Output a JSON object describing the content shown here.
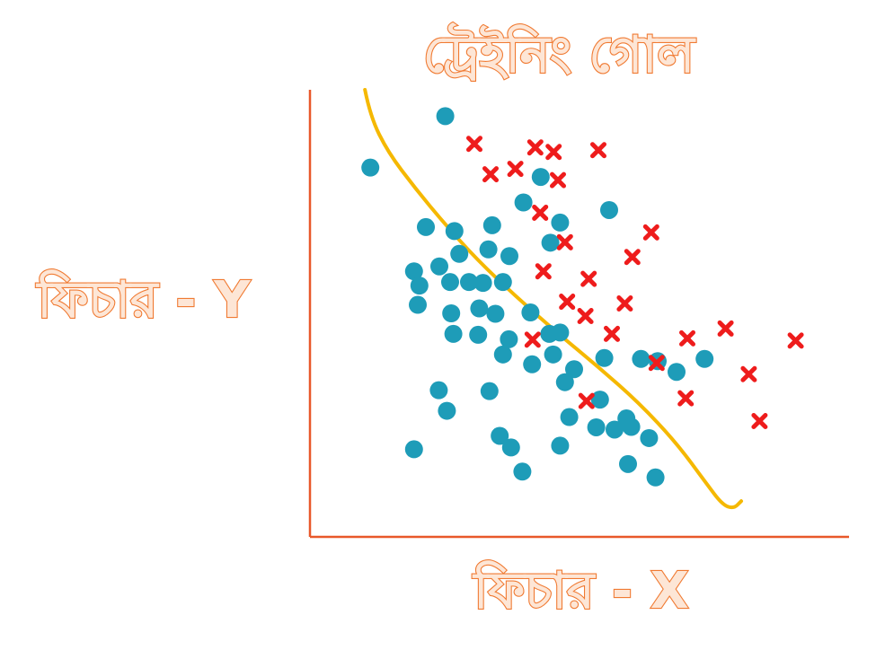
{
  "chart_data": {
    "type": "scatter",
    "title": "ট্রেইনিং গোল",
    "xlabel": "ফিচার - X",
    "ylabel": "ফিচার - Y",
    "xlim": [
      0,
      100
    ],
    "ylim": [
      0,
      100
    ],
    "grid": false,
    "legend": "none",
    "series": [
      {
        "marker": "circle",
        "color": "#1e9cb8",
        "points": [
          [
            25.1,
            94.1
          ],
          [
            11.2,
            82.6
          ],
          [
            42.8,
            80.5
          ],
          [
            39.6,
            74.8
          ],
          [
            26.8,
            68.4
          ],
          [
            21.5,
            69.3
          ],
          [
            33.8,
            69.7
          ],
          [
            55.5,
            73.1
          ],
          [
            46.4,
            70.3
          ],
          [
            44.6,
            65.8
          ],
          [
            27.7,
            63.3
          ],
          [
            33.1,
            64.3
          ],
          [
            37.0,
            62.8
          ],
          [
            24.0,
            60.5
          ],
          [
            19.3,
            59.4
          ],
          [
            26.0,
            57.0
          ],
          [
            20.3,
            56.2
          ],
          [
            29.5,
            57.0
          ],
          [
            32.1,
            56.8
          ],
          [
            35.8,
            57.0
          ],
          [
            20.0,
            51.9
          ],
          [
            26.2,
            50.0
          ],
          [
            31.4,
            51.1
          ],
          [
            34.4,
            49.9
          ],
          [
            40.9,
            50.2
          ],
          [
            46.4,
            45.7
          ],
          [
            26.6,
            45.4
          ],
          [
            31.2,
            45.2
          ],
          [
            36.9,
            44.2
          ],
          [
            44.4,
            45.4
          ],
          [
            35.8,
            40.8
          ],
          [
            41.2,
            38.6
          ],
          [
            45.1,
            40.8
          ],
          [
            49.0,
            37.5
          ],
          [
            54.6,
            40.0
          ],
          [
            61.4,
            39.8
          ],
          [
            64.5,
            39.3
          ],
          [
            73.2,
            39.8
          ],
          [
            68.0,
            36.9
          ],
          [
            47.3,
            34.6
          ],
          [
            23.9,
            32.8
          ],
          [
            33.3,
            32.6
          ],
          [
            53.8,
            30.7
          ],
          [
            25.4,
            28.2
          ],
          [
            48.1,
            26.8
          ],
          [
            58.7,
            26.5
          ],
          [
            53.1,
            24.5
          ],
          [
            56.5,
            24.0
          ],
          [
            59.6,
            24.6
          ],
          [
            35.2,
            22.6
          ],
          [
            19.3,
            19.6
          ],
          [
            37.3,
            20.0
          ],
          [
            46.4,
            20.4
          ],
          [
            62.9,
            22.1
          ],
          [
            59.0,
            16.3
          ],
          [
            39.4,
            14.6
          ],
          [
            64.1,
            13.3
          ]
        ]
      },
      {
        "marker": "cross",
        "color": "#ee1c1c",
        "points": [
          [
            30.5,
            87.9
          ],
          [
            41.8,
            87.1
          ],
          [
            45.2,
            86.1
          ],
          [
            53.5,
            86.5
          ],
          [
            33.5,
            81.1
          ],
          [
            38.1,
            82.3
          ],
          [
            46.0,
            79.8
          ],
          [
            42.7,
            72.5
          ],
          [
            63.3,
            68.1
          ],
          [
            47.3,
            65.9
          ],
          [
            59.8,
            62.6
          ],
          [
            43.3,
            59.4
          ],
          [
            51.7,
            57.7
          ],
          [
            58.4,
            52.2
          ],
          [
            47.7,
            52.6
          ],
          [
            51.1,
            49.4
          ],
          [
            56.0,
            45.4
          ],
          [
            70.0,
            44.4
          ],
          [
            77.1,
            46.6
          ],
          [
            90.1,
            43.9
          ],
          [
            41.3,
            44.1
          ],
          [
            64.3,
            38.9
          ],
          [
            81.4,
            36.4
          ],
          [
            51.3,
            30.4
          ],
          [
            69.7,
            31.0
          ],
          [
            83.4,
            25.9
          ]
        ]
      }
    ],
    "curve": {
      "color": "#f5b800",
      "points": [
        [
          10.2,
          100
        ],
        [
          11.2,
          94
        ],
        [
          14.5,
          86
        ],
        [
          19.5,
          78
        ],
        [
          25.0,
          70
        ],
        [
          31.0,
          62
        ],
        [
          38.0,
          54
        ],
        [
          45.5,
          46
        ],
        [
          53.5,
          38
        ],
        [
          61.0,
          30
        ],
        [
          68.0,
          21
        ],
        [
          73.5,
          12
        ],
        [
          76.5,
          7.2
        ],
        [
          78.6,
          6.3
        ],
        [
          80.0,
          8.0
        ]
      ]
    }
  }
}
